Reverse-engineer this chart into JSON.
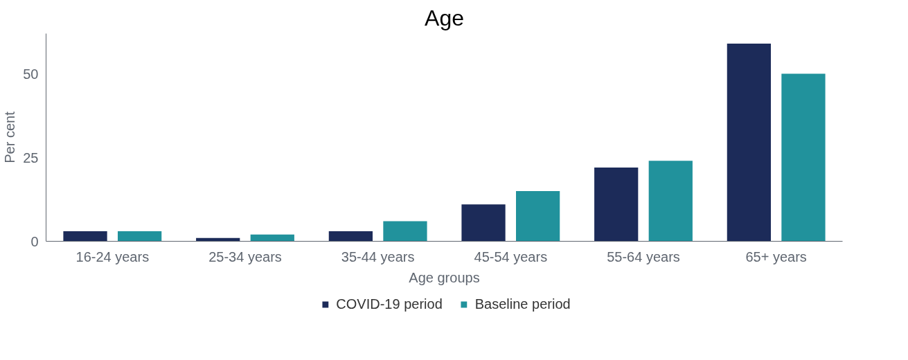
{
  "chart_data": {
    "type": "bar",
    "title": "Age",
    "xlabel": "Age groups",
    "ylabel": "Per cent",
    "categories": [
      "16-24 years",
      "25-34 years",
      "35-44 years",
      "45-54 years",
      "55-64 years",
      "65+ years"
    ],
    "series": [
      {
        "name": "COVID-19 period",
        "color": "#1c2b59",
        "values": [
          3,
          1,
          3,
          11,
          22,
          59
        ]
      },
      {
        "name": "Baseline period",
        "color": "#21929c",
        "values": [
          3,
          2,
          6,
          15,
          24,
          50
        ]
      }
    ],
    "ylim": [
      0,
      62
    ],
    "yticks": [
      0,
      25,
      50
    ],
    "grid": false,
    "legend": "bottom"
  }
}
